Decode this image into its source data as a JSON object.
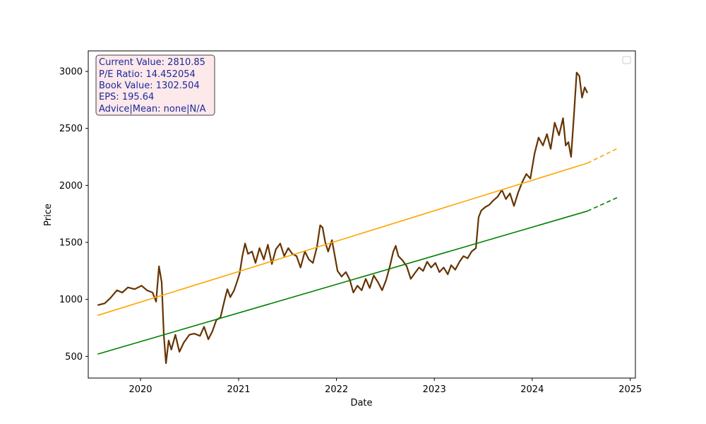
{
  "chart_data": {
    "type": "line",
    "title": "",
    "xlabel": "Date",
    "ylabel": "Price",
    "xlim": [
      "2019-06-20",
      "2025-01-20"
    ],
    "ylim": [
      310,
      3180
    ],
    "x_ticks": [
      "2020",
      "2021",
      "2022",
      "2023",
      "2024",
      "2025"
    ],
    "y_ticks": [
      500,
      1000,
      1500,
      2000,
      2500,
      3000
    ],
    "grid": false,
    "legend": {
      "placement": "top-right",
      "entries": []
    },
    "info_box": {
      "lines": [
        "Current Value: 2810.85",
        "P/E Ratio: 14.452054",
        "Book Value: 1302.504",
        "EPS: 195.64",
        "Advice|Mean: none|N/A"
      ]
    },
    "colors": {
      "price": "#663300",
      "upper_trend": "#ffa500",
      "lower_trend": "#008000",
      "info_box_fill": "#fde8ea",
      "info_text": "#1a2a9c"
    },
    "series": [
      {
        "role": "price",
        "style": "solid",
        "points": [
          [
            "2019-07-25",
            950
          ],
          [
            "2019-08-20",
            965
          ],
          [
            "2019-09-10",
            1010
          ],
          [
            "2019-10-05",
            1080
          ],
          [
            "2019-10-25",
            1060
          ],
          [
            "2019-11-15",
            1105
          ],
          [
            "2019-12-10",
            1090
          ],
          [
            "2020-01-05",
            1120
          ],
          [
            "2020-01-25",
            1080
          ],
          [
            "2020-02-15",
            1060
          ],
          [
            "2020-02-28",
            980
          ],
          [
            "2020-03-10",
            1290
          ],
          [
            "2020-03-20",
            1150
          ],
          [
            "2020-03-28",
            680
          ],
          [
            "2020-04-05",
            440
          ],
          [
            "2020-04-15",
            640
          ],
          [
            "2020-04-25",
            560
          ],
          [
            "2020-05-10",
            690
          ],
          [
            "2020-05-25",
            540
          ],
          [
            "2020-06-10",
            620
          ],
          [
            "2020-07-01",
            690
          ],
          [
            "2020-07-20",
            700
          ],
          [
            "2020-08-10",
            680
          ],
          [
            "2020-08-25",
            760
          ],
          [
            "2020-09-10",
            650
          ],
          [
            "2020-09-25",
            720
          ],
          [
            "2020-10-10",
            820
          ],
          [
            "2020-10-25",
            840
          ],
          [
            "2020-11-10",
            1000
          ],
          [
            "2020-11-20",
            1090
          ],
          [
            "2020-12-01",
            1020
          ],
          [
            "2020-12-15",
            1080
          ],
          [
            "2020-12-28",
            1170
          ],
          [
            "2021-01-05",
            1230
          ],
          [
            "2021-01-15",
            1380
          ],
          [
            "2021-01-25",
            1490
          ],
          [
            "2021-02-05",
            1400
          ],
          [
            "2021-02-20",
            1420
          ],
          [
            "2021-03-05",
            1320
          ],
          [
            "2021-03-20",
            1450
          ],
          [
            "2021-04-05",
            1350
          ],
          [
            "2021-04-20",
            1480
          ],
          [
            "2021-05-05",
            1310
          ],
          [
            "2021-05-20",
            1440
          ],
          [
            "2021-06-05",
            1490
          ],
          [
            "2021-06-20",
            1380
          ],
          [
            "2021-07-05",
            1450
          ],
          [
            "2021-07-20",
            1400
          ],
          [
            "2021-08-05",
            1380
          ],
          [
            "2021-08-20",
            1280
          ],
          [
            "2021-09-05",
            1420
          ],
          [
            "2021-09-20",
            1350
          ],
          [
            "2021-10-05",
            1320
          ],
          [
            "2021-10-20",
            1460
          ],
          [
            "2021-11-01",
            1650
          ],
          [
            "2021-11-10",
            1630
          ],
          [
            "2021-11-20",
            1500
          ],
          [
            "2021-12-01",
            1420
          ],
          [
            "2021-12-15",
            1520
          ],
          [
            "2021-12-25",
            1390
          ],
          [
            "2022-01-05",
            1250
          ],
          [
            "2022-01-20",
            1200
          ],
          [
            "2022-02-05",
            1240
          ],
          [
            "2022-02-20",
            1170
          ],
          [
            "2022-03-05",
            1060
          ],
          [
            "2022-03-20",
            1120
          ],
          [
            "2022-04-05",
            1080
          ],
          [
            "2022-04-20",
            1180
          ],
          [
            "2022-05-05",
            1100
          ],
          [
            "2022-05-20",
            1210
          ],
          [
            "2022-06-05",
            1150
          ],
          [
            "2022-06-20",
            1080
          ],
          [
            "2022-07-05",
            1170
          ],
          [
            "2022-07-20",
            1300
          ],
          [
            "2022-08-01",
            1420
          ],
          [
            "2022-08-10",
            1470
          ],
          [
            "2022-08-20",
            1380
          ],
          [
            "2022-09-05",
            1340
          ],
          [
            "2022-09-20",
            1290
          ],
          [
            "2022-10-05",
            1180
          ],
          [
            "2022-10-20",
            1230
          ],
          [
            "2022-11-05",
            1280
          ],
          [
            "2022-11-20",
            1250
          ],
          [
            "2022-12-05",
            1330
          ],
          [
            "2022-12-20",
            1280
          ],
          [
            "2023-01-05",
            1320
          ],
          [
            "2023-01-20",
            1240
          ],
          [
            "2023-02-05",
            1280
          ],
          [
            "2023-02-20",
            1220
          ],
          [
            "2023-03-05",
            1300
          ],
          [
            "2023-03-20",
            1260
          ],
          [
            "2023-04-05",
            1330
          ],
          [
            "2023-04-20",
            1380
          ],
          [
            "2023-05-05",
            1360
          ],
          [
            "2023-05-20",
            1420
          ],
          [
            "2023-06-05",
            1450
          ],
          [
            "2023-06-15",
            1720
          ],
          [
            "2023-06-25",
            1780
          ],
          [
            "2023-07-10",
            1810
          ],
          [
            "2023-07-25",
            1830
          ],
          [
            "2023-08-10",
            1870
          ],
          [
            "2023-08-25",
            1900
          ],
          [
            "2023-09-10",
            1960
          ],
          [
            "2023-09-25",
            1880
          ],
          [
            "2023-10-10",
            1930
          ],
          [
            "2023-10-25",
            1820
          ],
          [
            "2023-11-10",
            1940
          ],
          [
            "2023-11-25",
            2030
          ],
          [
            "2023-12-10",
            2100
          ],
          [
            "2023-12-25",
            2060
          ],
          [
            "2024-01-10",
            2280
          ],
          [
            "2024-01-25",
            2420
          ],
          [
            "2024-02-10",
            2350
          ],
          [
            "2024-02-25",
            2450
          ],
          [
            "2024-03-10",
            2320
          ],
          [
            "2024-03-25",
            2550
          ],
          [
            "2024-04-10",
            2440
          ],
          [
            "2024-04-25",
            2590
          ],
          [
            "2024-05-05",
            2350
          ],
          [
            "2024-05-15",
            2380
          ],
          [
            "2024-05-25",
            2250
          ],
          [
            "2024-06-05",
            2620
          ],
          [
            "2024-06-15",
            2990
          ],
          [
            "2024-06-25",
            2960
          ],
          [
            "2024-07-05",
            2770
          ],
          [
            "2024-07-15",
            2860
          ],
          [
            "2024-07-25",
            2811
          ]
        ]
      },
      {
        "role": "upper_trend",
        "style": "solid",
        "points": [
          [
            "2019-07-25",
            860
          ],
          [
            "2024-07-25",
            2195
          ]
        ]
      },
      {
        "role": "upper_trend",
        "style": "dashed",
        "points": [
          [
            "2024-07-25",
            2195
          ],
          [
            "2024-11-15",
            2325
          ]
        ]
      },
      {
        "role": "lower_trend",
        "style": "solid",
        "points": [
          [
            "2019-07-25",
            520
          ],
          [
            "2024-07-25",
            1775
          ]
        ]
      },
      {
        "role": "lower_trend",
        "style": "dashed",
        "points": [
          [
            "2024-07-25",
            1775
          ],
          [
            "2024-11-15",
            1895
          ]
        ]
      }
    ]
  }
}
